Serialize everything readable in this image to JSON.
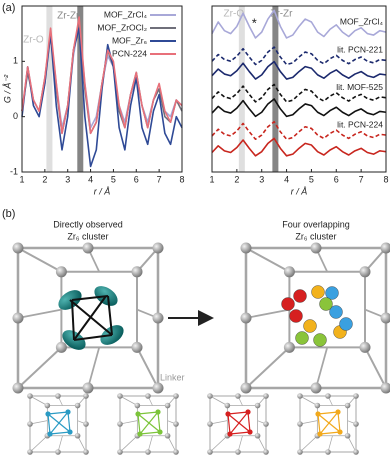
{
  "panels": {
    "a": "(a)",
    "b": "(b)"
  },
  "chart_data": [
    {
      "type": "line",
      "xlabel": "r / Å",
      "ylabel": "G / Å⁻²",
      "x": [
        1,
        1.25,
        1.5,
        1.75,
        2,
        2.25,
        2.5,
        2.75,
        3,
        3.25,
        3.5,
        3.75,
        4,
        4.25,
        4.5,
        4.75,
        5,
        5.25,
        5.5,
        5.75,
        6,
        6.25,
        6.5,
        6.75,
        7,
        7.25,
        7.5,
        7.75,
        8
      ],
      "xlim": [
        1,
        8
      ],
      "xticks": [
        1,
        2,
        3,
        4,
        5,
        6,
        7,
        8
      ],
      "ylim": [
        -1,
        2
      ],
      "yticks": [
        -1,
        0,
        1
      ],
      "bands": [
        {
          "x": 2.2,
          "label": "Zr-O",
          "color": "#d9d9d9"
        },
        {
          "x": 3.55,
          "label": "Zr-Zr",
          "color": "#707070"
        }
      ],
      "legend": "upper right",
      "series": [
        {
          "name": "MOF_ZrCl₄",
          "color": "#a8a8d8",
          "values": [
            0.1,
            0.9,
            0.3,
            0.1,
            0.6,
            1.5,
            0.6,
            -0.2,
            0.2,
            1.1,
            1.7,
            0.6,
            -0.2,
            0.0,
            0.6,
            1.1,
            0.9,
            0.2,
            -0.1,
            0.4,
            0.7,
            0.2,
            -0.1,
            0.3,
            0.5,
            0.1,
            0.0,
            0.3,
            0.2
          ]
        },
        {
          "name": "MOF_ZrOCl₂",
          "color": "#6f6f7a",
          "values": [
            0.1,
            0.8,
            0.3,
            0.1,
            0.7,
            1.5,
            0.5,
            -0.3,
            0.2,
            1.2,
            1.7,
            0.5,
            -0.3,
            -0.1,
            0.6,
            1.2,
            0.9,
            0.1,
            -0.2,
            0.4,
            0.8,
            0.2,
            -0.2,
            0.3,
            0.5,
            0.0,
            -0.1,
            0.3,
            0.1
          ]
        },
        {
          "name": "MOF_Zr₆",
          "color": "#2f4a96",
          "values": [
            0.0,
            0.9,
            0.2,
            0.0,
            0.6,
            1.5,
            0.2,
            -0.6,
            0.0,
            1.2,
            1.6,
            0.0,
            -0.9,
            -0.6,
            0.5,
            1.3,
            0.9,
            -0.2,
            -0.6,
            0.2,
            0.7,
            -0.2,
            -0.5,
            0.1,
            0.4,
            -0.3,
            -0.5,
            0.0,
            -0.2
          ]
        },
        {
          "name": "PCN-224",
          "color": "#e8707a",
          "values": [
            0.1,
            0.9,
            0.3,
            0.1,
            0.7,
            1.6,
            0.6,
            -0.3,
            0.2,
            1.2,
            1.8,
            0.6,
            -0.3,
            -0.1,
            0.6,
            1.2,
            1.0,
            0.2,
            -0.2,
            0.4,
            0.8,
            0.2,
            -0.2,
            0.3,
            0.6,
            0.1,
            -0.1,
            0.3,
            0.2
          ]
        }
      ]
    },
    {
      "type": "line",
      "xlabel": "r / Å",
      "x": [
        1,
        1.25,
        1.5,
        1.75,
        2,
        2.25,
        2.5,
        2.75,
        3,
        3.25,
        3.5,
        3.75,
        4,
        4.25,
        4.5,
        4.75,
        5,
        5.25,
        5.5,
        5.75,
        6,
        6.25,
        6.5,
        6.75,
        7,
        7.25,
        7.5,
        7.75,
        8
      ],
      "xlim": [
        1,
        8
      ],
      "xticks": [
        1,
        2,
        3,
        4,
        5,
        6,
        7,
        8
      ],
      "ylim": [
        0,
        8
      ],
      "bands": [
        {
          "x": 2.2,
          "label": "Zr-O",
          "color": "#d9d9d9"
        },
        {
          "x": 3.55,
          "label": "Zr-Zr",
          "color": "#707070"
        }
      ],
      "annotation": "*",
      "series": [
        {
          "name": "MOF_ZrCl₄",
          "color": "#a8a8d8",
          "values": [
            6.67,
            7.23,
            6.81,
            6.67,
            7.02,
            7.65,
            7.02,
            6.46,
            6.74,
            7.37,
            7.79,
            7.02,
            6.46,
            6.6,
            7.02,
            7.37,
            7.23,
            6.74,
            6.53,
            6.88,
            7.09,
            6.74,
            6.53,
            6.81,
            6.95,
            6.67,
            6.6,
            6.81,
            6.74
          ]
        },
        {
          "name": "lit. PCN-221",
          "color": "#1c2a6e",
          "dashed": true,
          "values": [
            5.34,
            5.66,
            5.42,
            5.34,
            5.58,
            5.94,
            5.54,
            5.18,
            5.38,
            5.78,
            6.02,
            5.54,
            5.18,
            5.26,
            5.54,
            5.78,
            5.7,
            5.38,
            5.22,
            5.46,
            5.62,
            5.38,
            5.22,
            5.42,
            5.54,
            5.34,
            5.26,
            5.42,
            5.38
          ]
        },
        {
          "color": "#1c2a6e",
          "values": [
            4.64,
            4.96,
            4.72,
            4.64,
            4.88,
            5.24,
            4.84,
            4.48,
            4.68,
            5.08,
            5.32,
            4.84,
            4.48,
            4.56,
            4.84,
            5.08,
            5.0,
            4.68,
            4.52,
            4.76,
            4.92,
            4.68,
            4.52,
            4.72,
            4.84,
            4.64,
            4.56,
            4.72,
            4.68
          ]
        },
        {
          "name": "lit. MOF-525",
          "color": "#111111",
          "dashed": true,
          "values": [
            3.54,
            3.86,
            3.62,
            3.54,
            3.78,
            4.14,
            3.74,
            3.38,
            3.58,
            3.98,
            4.22,
            3.74,
            3.38,
            3.46,
            3.74,
            3.98,
            3.9,
            3.58,
            3.42,
            3.66,
            3.82,
            3.58,
            3.42,
            3.62,
            3.74,
            3.54,
            3.46,
            3.62,
            3.58
          ]
        },
        {
          "color": "#111111",
          "values": [
            2.84,
            3.16,
            2.92,
            2.84,
            3.08,
            3.44,
            3.04,
            2.68,
            2.88,
            3.28,
            3.52,
            3.04,
            2.68,
            2.76,
            3.04,
            3.28,
            3.2,
            2.88,
            2.72,
            2.96,
            3.12,
            2.88,
            2.72,
            2.92,
            3.04,
            2.84,
            2.76,
            2.92,
            2.88
          ]
        },
        {
          "name": "lit. PCN-224",
          "color": "#c8261e",
          "dashed": true,
          "values": [
            1.74,
            2.06,
            1.82,
            1.74,
            1.98,
            2.34,
            1.94,
            1.58,
            1.78,
            2.18,
            2.42,
            1.94,
            1.58,
            1.66,
            1.94,
            2.18,
            2.1,
            1.78,
            1.62,
            1.86,
            2.02,
            1.78,
            1.62,
            1.82,
            1.94,
            1.74,
            1.66,
            1.82,
            1.78
          ]
        },
        {
          "color": "#c8261e",
          "values": [
            0.94,
            1.26,
            1.02,
            0.94,
            1.18,
            1.54,
            1.14,
            0.78,
            0.98,
            1.38,
            1.62,
            1.14,
            0.78,
            0.86,
            1.14,
            1.38,
            1.3,
            0.98,
            0.82,
            1.06,
            1.22,
            0.98,
            0.82,
            1.02,
            1.14,
            0.94,
            0.86,
            1.02,
            0.98
          ]
        }
      ]
    }
  ],
  "diagram": {
    "left_title": [
      "Directly observed",
      "Zr₆ cluster"
    ],
    "right_title": [
      "Four overlapping",
      "Zr₆ cluster"
    ],
    "linker_label": "Linker"
  }
}
